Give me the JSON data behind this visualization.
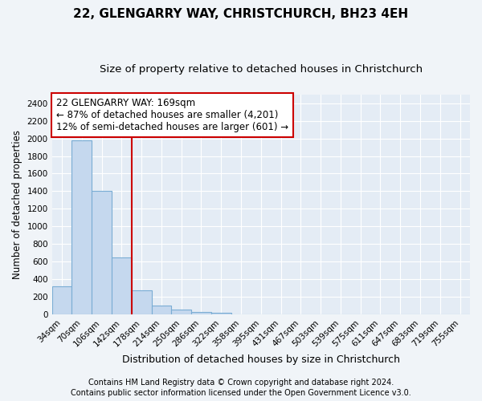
{
  "title1": "22, GLENGARRY WAY, CHRISTCHURCH, BH23 4EH",
  "title2": "Size of property relative to detached houses in Christchurch",
  "xlabel": "Distribution of detached houses by size in Christchurch",
  "ylabel": "Number of detached properties",
  "footnote1": "Contains HM Land Registry data © Crown copyright and database right 2024.",
  "footnote2": "Contains public sector information licensed under the Open Government Licence v3.0.",
  "bar_labels": [
    "34sqm",
    "70sqm",
    "106sqm",
    "142sqm",
    "178sqm",
    "214sqm",
    "250sqm",
    "286sqm",
    "322sqm",
    "358sqm",
    "395sqm",
    "431sqm",
    "467sqm",
    "503sqm",
    "539sqm",
    "575sqm",
    "611sqm",
    "647sqm",
    "683sqm",
    "719sqm",
    "755sqm"
  ],
  "bar_values": [
    320,
    1980,
    1400,
    650,
    275,
    100,
    50,
    30,
    20,
    0,
    0,
    0,
    0,
    0,
    0,
    0,
    0,
    0,
    0,
    0,
    0
  ],
  "bar_color": "#c5d8ee",
  "bar_edge_color": "#7aadd4",
  "vline_color": "#cc0000",
  "annotation_text1": "22 GLENGARRY WAY: 169sqm",
  "annotation_text2": "← 87% of detached houses are smaller (4,201)",
  "annotation_text3": "12% of semi-detached houses are larger (601) →",
  "annotation_box_facecolor": "#ffffff",
  "annotation_box_edgecolor": "#cc0000",
  "ylim_max": 2500,
  "yticks": [
    0,
    200,
    400,
    600,
    800,
    1000,
    1200,
    1400,
    1600,
    1800,
    2000,
    2200,
    2400
  ],
  "fig_bg_color": "#f0f4f8",
  "plot_bg_color": "#e4ecf5",
  "grid_color": "#ffffff",
  "title1_fontsize": 11,
  "title2_fontsize": 9.5,
  "annotation_fontsize": 8.5,
  "tick_fontsize": 7.5,
  "ylabel_fontsize": 8.5,
  "xlabel_fontsize": 9,
  "footnote_fontsize": 7
}
